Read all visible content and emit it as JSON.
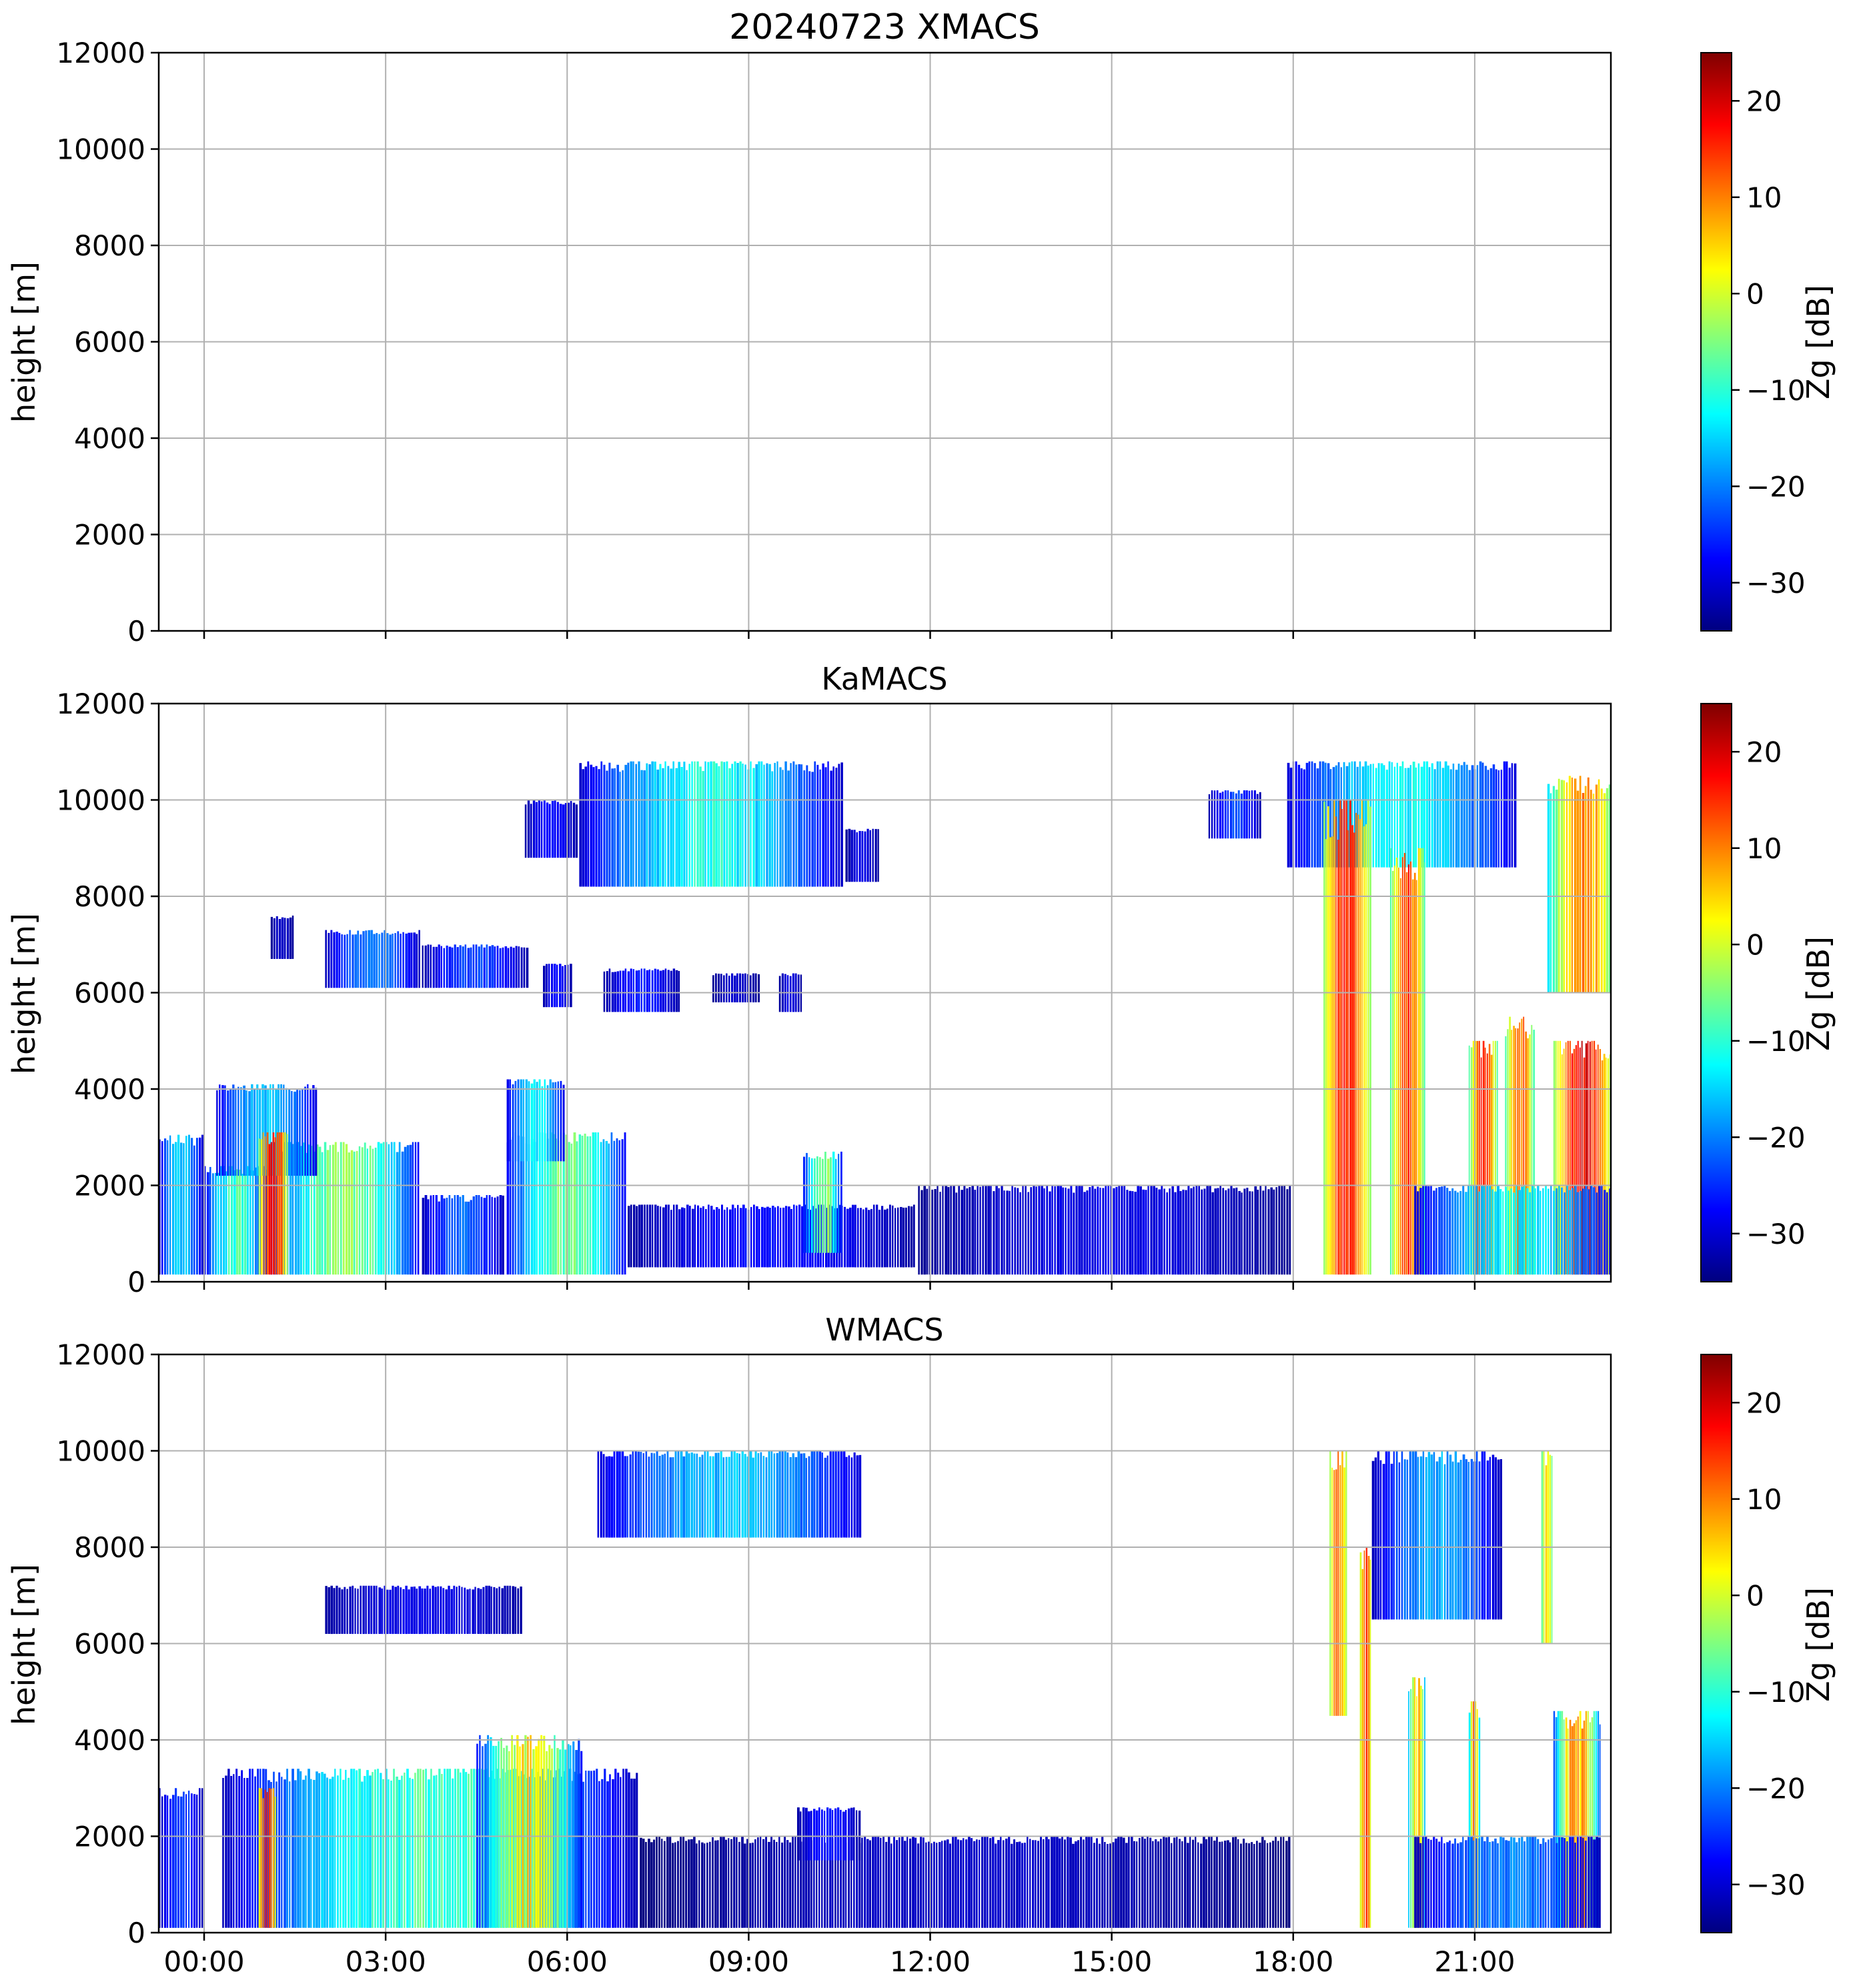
{
  "figure_title": "20240723 XMACS",
  "colors": {
    "grid": "#b0b0b0",
    "axes": "#000000",
    "jet": [
      "#00007f",
      "#0000ff",
      "#007fff",
      "#00ffff",
      "#7fff7f",
      "#ffff00",
      "#ff7f00",
      "#ff0000",
      "#7f0000"
    ]
  },
  "chart_data": [
    {
      "type": "heatmap",
      "panel": "XMACS",
      "title": "20240723 XMACS",
      "xlabel": "",
      "ylabel": "height [m]",
      "xticks": [
        "00:00",
        "03:00",
        "06:00",
        "09:00",
        "12:00",
        "15:00",
        "18:00",
        "21:00"
      ],
      "xtick_hours": [
        0,
        3,
        6,
        9,
        12,
        15,
        18,
        21
      ],
      "x_range_hours": [
        -0.75,
        23.25
      ],
      "yticks": [
        0,
        2000,
        4000,
        6000,
        8000,
        10000,
        12000
      ],
      "ylim": [
        0,
        12000
      ],
      "grid": true,
      "show_xtick_labels": false,
      "colorbar": {
        "label": "Zg [dB]",
        "ticks": [
          -30,
          -20,
          -10,
          0,
          10,
          20
        ],
        "range": [
          -35,
          25
        ],
        "cmap": "jet"
      },
      "note": "no echo",
      "features": []
    },
    {
      "type": "heatmap",
      "panel": "KaMACS",
      "title": "KaMACS",
      "xlabel": "",
      "ylabel": "height [m]",
      "xticks": [
        "00:00",
        "03:00",
        "06:00",
        "09:00",
        "12:00",
        "15:00",
        "18:00",
        "21:00"
      ],
      "xtick_hours": [
        0,
        3,
        6,
        9,
        12,
        15,
        18,
        21
      ],
      "x_range_hours": [
        -0.75,
        23.25
      ],
      "yticks": [
        0,
        2000,
        4000,
        6000,
        8000,
        10000,
        12000
      ],
      "ylim": [
        0,
        12000
      ],
      "grid": true,
      "show_xtick_labels": false,
      "colorbar": {
        "label": "Zg [dB]",
        "ticks": [
          -30,
          -20,
          -10,
          0,
          10,
          20
        ],
        "range": [
          -35,
          25
        ],
        "cmap": "jet"
      },
      "features": [
        {
          "kind": "layer",
          "t0": -0.75,
          "t1": 0.0,
          "h0": 150,
          "h1": 3050,
          "zbase": -32,
          "zpeak": -12
        },
        {
          "kind": "layer",
          "t0": 0.0,
          "t1": 1.1,
          "h0": 150,
          "h1": 2400,
          "zbase": -30,
          "zpeak": -5
        },
        {
          "kind": "layer",
          "t0": 1.1,
          "t1": 3.6,
          "h0": 150,
          "h1": 2900,
          "zbase": -28,
          "zpeak": 0
        },
        {
          "kind": "layer",
          "t0": 0.2,
          "t1": 1.9,
          "h0": 2200,
          "h1": 4100,
          "zbase": -30,
          "zpeak": -14
        },
        {
          "kind": "core",
          "t0": 0.9,
          "t1": 1.4,
          "h0": 150,
          "h1": 3100,
          "zbase": -5,
          "zpeak": 22
        },
        {
          "kind": "layer",
          "t0": 3.6,
          "t1": 5.0,
          "h0": 150,
          "h1": 1800,
          "zbase": -32,
          "zpeak": -20
        },
        {
          "kind": "layer",
          "t0": 5.0,
          "t1": 7.0,
          "h0": 150,
          "h1": 3100,
          "zbase": -28,
          "zpeak": -2
        },
        {
          "kind": "layer",
          "t0": 5.0,
          "t1": 6.0,
          "h0": 2500,
          "h1": 4200,
          "zbase": -30,
          "zpeak": -10
        },
        {
          "kind": "layer",
          "t0": 7.0,
          "t1": 11.8,
          "h0": 300,
          "h1": 1600,
          "zbase": -33,
          "zpeak": -26
        },
        {
          "kind": "layer",
          "t0": 11.8,
          "t1": 18.0,
          "h0": 150,
          "h1": 2000,
          "zbase": -34,
          "zpeak": -28
        },
        {
          "kind": "layer",
          "t0": 9.9,
          "t1": 10.6,
          "h0": 600,
          "h1": 2700,
          "zbase": -28,
          "zpeak": 0
        },
        {
          "kind": "layer",
          "t0": 1.1,
          "t1": 1.5,
          "h0": 6700,
          "h1": 7600,
          "zbase": -34,
          "zpeak": -30
        },
        {
          "kind": "layer",
          "t0": 2.0,
          "t1": 3.6,
          "h0": 6100,
          "h1": 7300,
          "zbase": -32,
          "zpeak": -18
        },
        {
          "kind": "layer",
          "t0": 3.6,
          "t1": 5.4,
          "h0": 6100,
          "h1": 7000,
          "zbase": -33,
          "zpeak": -22
        },
        {
          "kind": "layer",
          "t0": 5.6,
          "t1": 6.1,
          "h0": 5700,
          "h1": 6600,
          "zbase": -33,
          "zpeak": -26
        },
        {
          "kind": "layer",
          "t0": 6.6,
          "t1": 7.9,
          "h0": 5600,
          "h1": 6500,
          "zbase": -33,
          "zpeak": -25
        },
        {
          "kind": "layer",
          "t0": 5.3,
          "t1": 6.2,
          "h0": 8800,
          "h1": 10000,
          "zbase": -33,
          "zpeak": -26
        },
        {
          "kind": "layer",
          "t0": 6.2,
          "t1": 10.6,
          "h0": 8200,
          "h1": 10800,
          "zbase": -31,
          "zpeak": -8
        },
        {
          "kind": "layer",
          "t0": 10.6,
          "t1": 11.2,
          "h0": 8300,
          "h1": 9400,
          "zbase": -34,
          "zpeak": -28
        },
        {
          "kind": "layer",
          "t0": 8.4,
          "t1": 9.2,
          "h0": 5800,
          "h1": 6400,
          "zbase": -34,
          "zpeak": -30
        },
        {
          "kind": "layer",
          "t0": 9.5,
          "t1": 9.9,
          "h0": 5600,
          "h1": 6400,
          "zbase": -34,
          "zpeak": -28
        },
        {
          "kind": "layer",
          "t0": 16.6,
          "t1": 17.5,
          "h0": 9200,
          "h1": 10200,
          "zbase": -33,
          "zpeak": -22
        },
        {
          "kind": "layer",
          "t0": 17.9,
          "t1": 21.7,
          "h0": 8600,
          "h1": 10800,
          "zbase": -30,
          "zpeak": -10
        },
        {
          "kind": "core",
          "t0": 18.5,
          "t1": 19.3,
          "h0": 150,
          "h1": 10000,
          "zbase": -5,
          "zpeak": 20
        },
        {
          "kind": "core",
          "t0": 19.6,
          "t1": 20.2,
          "h0": 150,
          "h1": 9000,
          "zbase": -10,
          "zpeak": 18
        },
        {
          "kind": "core",
          "t0": 20.9,
          "t1": 21.4,
          "h0": 150,
          "h1": 5000,
          "zbase": -10,
          "zpeak": 18
        },
        {
          "kind": "core",
          "t0": 21.5,
          "t1": 22.0,
          "h0": 150,
          "h1": 5500,
          "zbase": -10,
          "zpeak": 16
        },
        {
          "kind": "layer",
          "t0": 22.2,
          "t1": 23.4,
          "h0": 6000,
          "h1": 10500,
          "zbase": -15,
          "zpeak": 14
        },
        {
          "kind": "core",
          "t0": 22.3,
          "t1": 23.3,
          "h0": 150,
          "h1": 5000,
          "zbase": -5,
          "zpeak": 22
        },
        {
          "kind": "layer",
          "t0": 20.0,
          "t1": 23.4,
          "h0": 150,
          "h1": 2000,
          "zbase": -30,
          "zpeak": -10
        }
      ]
    },
    {
      "type": "heatmap",
      "panel": "WMACS",
      "title": "WMACS",
      "xlabel": "",
      "ylabel": "height [m]",
      "xticks": [
        "00:00",
        "03:00",
        "06:00",
        "09:00",
        "12:00",
        "15:00",
        "18:00",
        "21:00"
      ],
      "xtick_hours": [
        0,
        3,
        6,
        9,
        12,
        15,
        18,
        21
      ],
      "x_range_hours": [
        -0.75,
        23.25
      ],
      "yticks": [
        0,
        2000,
        4000,
        6000,
        8000,
        10000,
        12000
      ],
      "ylim": [
        0,
        12000
      ],
      "grid": true,
      "show_xtick_labels": true,
      "colorbar": {
        "label": "Zg [dB]",
        "ticks": [
          -30,
          -20,
          -10,
          0,
          10,
          20
        ],
        "range": [
          -35,
          25
        ],
        "cmap": "jet"
      },
      "features": [
        {
          "kind": "layer",
          "t0": -0.75,
          "t1": 0.0,
          "h0": 100,
          "h1": 3000,
          "zbase": -33,
          "zpeak": -22
        },
        {
          "kind": "layer",
          "t0": 0.3,
          "t1": 7.2,
          "h0": 100,
          "h1": 3400,
          "zbase": -32,
          "zpeak": -5
        },
        {
          "kind": "core",
          "t0": 0.9,
          "t1": 1.2,
          "h0": 100,
          "h1": 3000,
          "zbase": 0,
          "zpeak": 18
        },
        {
          "kind": "layer",
          "t0": 4.5,
          "t1": 6.3,
          "h0": 100,
          "h1": 4100,
          "zbase": -28,
          "zpeak": 8
        },
        {
          "kind": "layer",
          "t0": 7.2,
          "t1": 18.0,
          "h0": 100,
          "h1": 2000,
          "zbase": -35,
          "zpeak": -30
        },
        {
          "kind": "layer",
          "t0": 9.8,
          "t1": 10.9,
          "h0": 1500,
          "h1": 2600,
          "zbase": -33,
          "zpeak": -25
        },
        {
          "kind": "layer",
          "t0": 2.0,
          "t1": 5.3,
          "h0": 6200,
          "h1": 7200,
          "zbase": -33,
          "zpeak": -28
        },
        {
          "kind": "layer",
          "t0": 6.5,
          "t1": 10.9,
          "h0": 8200,
          "h1": 10000,
          "zbase": -30,
          "zpeak": -14
        },
        {
          "kind": "core",
          "t0": 18.6,
          "t1": 18.9,
          "h0": 4500,
          "h1": 10000,
          "zbase": -5,
          "zpeak": 14
        },
        {
          "kind": "core",
          "t0": 19.1,
          "t1": 19.3,
          "h0": 100,
          "h1": 8000,
          "zbase": -5,
          "zpeak": 18
        },
        {
          "kind": "layer",
          "t0": 19.3,
          "t1": 21.5,
          "h0": 6500,
          "h1": 10000,
          "zbase": -32,
          "zpeak": -15
        },
        {
          "kind": "core",
          "t0": 19.9,
          "t1": 20.2,
          "h0": 100,
          "h1": 5300,
          "zbase": -20,
          "zpeak": 10
        },
        {
          "kind": "core",
          "t0": 20.9,
          "t1": 21.1,
          "h0": 100,
          "h1": 4800,
          "zbase": -20,
          "zpeak": 14
        },
        {
          "kind": "core",
          "t0": 22.1,
          "t1": 22.3,
          "h0": 6000,
          "h1": 10000,
          "zbase": -10,
          "zpeak": 6
        },
        {
          "kind": "core",
          "t0": 22.3,
          "t1": 23.1,
          "h0": 100,
          "h1": 4600,
          "zbase": -25,
          "zpeak": 14
        },
        {
          "kind": "layer",
          "t0": 20.0,
          "t1": 23.1,
          "h0": 100,
          "h1": 2000,
          "zbase": -32,
          "zpeak": -18
        }
      ]
    }
  ]
}
